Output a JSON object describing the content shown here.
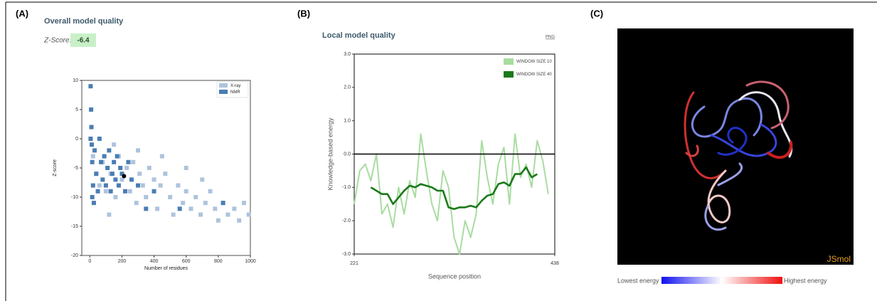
{
  "panels": {
    "a": {
      "label": "(A)",
      "title": "Overall model quality",
      "z_score_label": "Z-Score:",
      "z_score": -6.4
    },
    "b": {
      "label": "(B)",
      "title": "Local model quality",
      "png_link": "PNG"
    },
    "c": {
      "label": "(C)",
      "jsmol": "JSmol",
      "lowest": "Lowest energy",
      "highest": "Highest energy"
    }
  },
  "chart_data": [
    {
      "type": "scatter",
      "x_label": "Number of residues",
      "y_label": "Z-score",
      "xlim": [
        -50,
        1000
      ],
      "ylim": [
        -20,
        10
      ],
      "xticks": [
        0,
        200,
        400,
        600,
        800,
        1000
      ],
      "yticks": [
        -20,
        -15,
        -10,
        -5,
        0,
        5,
        10
      ],
      "legend": "upper right",
      "series": [
        {
          "name": "X-ray",
          "color": "#aec3dd",
          "x": [
            20,
            40,
            60,
            80,
            100,
            130,
            160,
            180,
            200,
            230,
            250,
            270,
            290,
            310,
            330,
            350,
            370,
            400,
            420,
            440,
            470,
            500,
            520,
            550,
            580,
            600,
            630,
            660,
            690,
            720,
            750,
            780,
            800,
            830,
            860,
            900,
            930,
            960,
            990,
            150,
            300,
            450,
            600,
            120,
            700
          ],
          "values": [
            -3,
            -6,
            -8,
            -4,
            -9,
            -6,
            -10,
            -3,
            -7,
            -5,
            -9,
            -4,
            -11,
            -6,
            -8,
            -10,
            -5,
            -7,
            -12,
            -8,
            -6,
            -10,
            -13,
            -8,
            -11,
            -9,
            -12,
            -10,
            -13,
            -11,
            -9,
            -12,
            -14,
            -11,
            -13,
            -12,
            -14,
            -11,
            -13,
            -1,
            -2,
            -3,
            -5,
            -13,
            -7
          ]
        },
        {
          "name": "NMR",
          "color": "#4a7db3",
          "x": [
            5,
            8,
            10,
            12,
            15,
            20,
            25,
            30,
            40,
            50,
            60,
            70,
            80,
            90,
            100,
            110,
            120,
            130,
            140,
            150,
            160,
            170,
            180,
            190,
            200,
            220,
            240,
            260,
            300,
            350,
            400,
            560,
            830,
            15,
            5
          ],
          "values": [
            9,
            5,
            2,
            -1,
            -4,
            -8,
            -11,
            -2,
            -6,
            -9,
            0,
            -4,
            -7,
            -3,
            -8,
            -5,
            -2,
            -9,
            -6,
            -4,
            -7,
            -3,
            -8,
            -5,
            -6,
            -9,
            -4,
            -7,
            -8,
            -12,
            -9,
            -12,
            -11,
            -10,
            0
          ]
        }
      ],
      "highlight": {
        "x": 213,
        "value": -6.4,
        "color": "#000000"
      }
    },
    {
      "type": "line",
      "x_label": "Sequence position",
      "y_label": "Knowledge-based energy",
      "xlim": [
        221,
        438
      ],
      "ylim": [
        -3,
        3
      ],
      "xticks": [
        221,
        438
      ],
      "yticks": [
        {
          "value": -3,
          "label": "-3.0"
        },
        {
          "value": -2,
          "label": "-2.0"
        },
        {
          "value": -1,
          "label": "-1.0"
        },
        {
          "value": 0,
          "label": "0.0"
        },
        {
          "value": 1,
          "label": "1.0"
        },
        {
          "value": 2,
          "label": "2.0"
        },
        {
          "value": 3,
          "label": "3.0"
        }
      ],
      "reference_line": 0,
      "legend": "upper right",
      "x": [
        221,
        227,
        233,
        239,
        245,
        251,
        257,
        263,
        269,
        275,
        281,
        287,
        293,
        299,
        305,
        311,
        317,
        323,
        329,
        335,
        341,
        347,
        353,
        359,
        365,
        371,
        377,
        383,
        389,
        395,
        401,
        407,
        413,
        419,
        425,
        431,
        437
      ],
      "series": [
        {
          "name": "WINDOW SIZE 10",
          "color": "#a8dca0",
          "values": [
            -1.5,
            -0.5,
            -0.3,
            -0.8,
            0.0,
            -1.8,
            -1.5,
            -2.2,
            -1.0,
            -1.8,
            -0.8,
            -1.3,
            0.6,
            -0.5,
            -1.5,
            -2.0,
            -0.5,
            -1.0,
            -2.5,
            -3.0,
            -2.0,
            -2.5,
            -1.8,
            0.4,
            -0.7,
            -1.5,
            -0.3,
            0.2,
            -1.5,
            0.6,
            -0.7,
            -0.3,
            -1.0,
            0.4,
            -0.2,
            -1.2,
            null
          ]
        },
        {
          "name": "WINDOW SIZE 40",
          "color": "#1a7a1a",
          "values": [
            null,
            null,
            null,
            -1.0,
            -1.1,
            -1.2,
            -1.2,
            -1.5,
            -1.3,
            -1.1,
            -0.95,
            -1.0,
            -0.9,
            -0.95,
            -1.0,
            -1.1,
            -1.1,
            -1.6,
            -1.65,
            -1.6,
            -1.6,
            -1.55,
            -1.6,
            -1.4,
            -1.25,
            -1.2,
            -0.9,
            -0.85,
            -0.95,
            -0.6,
            -0.6,
            -0.4,
            -0.7,
            -0.6,
            null,
            null,
            null
          ]
        }
      ]
    }
  ]
}
